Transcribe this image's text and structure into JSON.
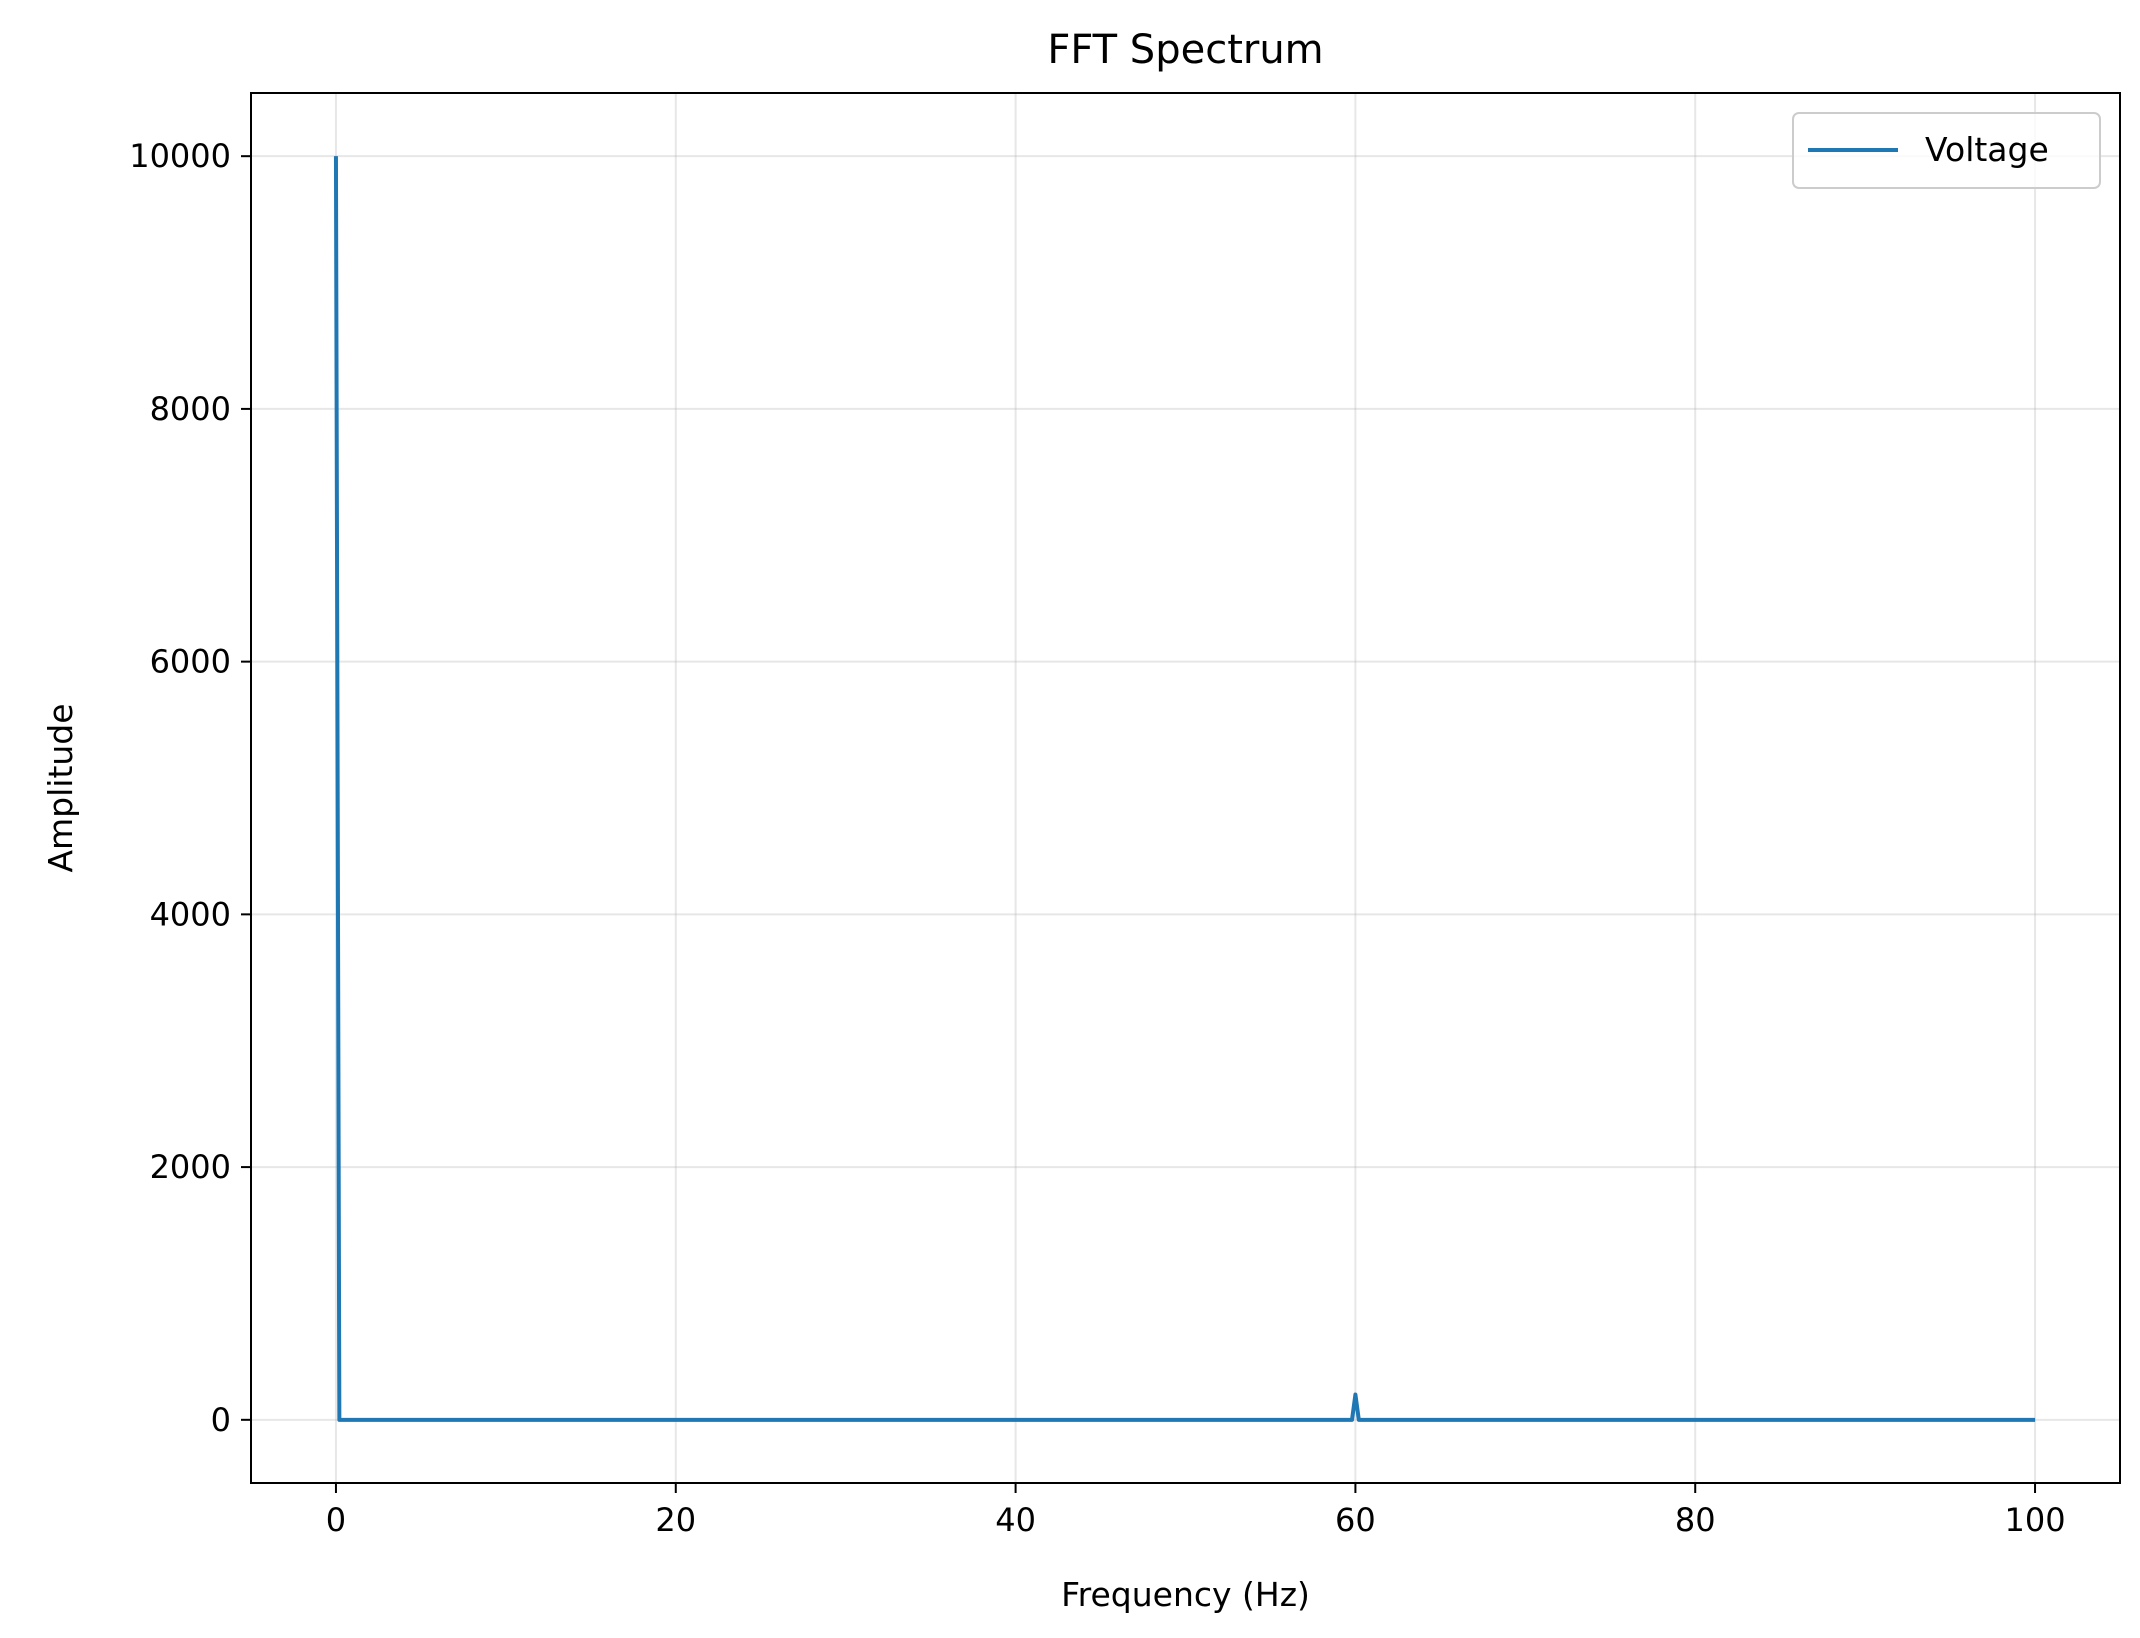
{
  "chart_data": {
    "type": "line",
    "title": "FFT Spectrum",
    "xlabel": "Frequency (Hz)",
    "ylabel": "Amplitude",
    "xlim": [
      -5,
      105
    ],
    "ylim": [
      -500,
      10500
    ],
    "xticks": [
      0,
      20,
      40,
      60,
      80,
      100
    ],
    "yticks": [
      0,
      2000,
      4000,
      6000,
      8000,
      10000
    ],
    "grid": true,
    "legend_position": "upper right",
    "series": [
      {
        "name": "Voltage",
        "color": "#1f77b4",
        "x": [
          0,
          0.2,
          59.6,
          59.8,
          60.0,
          60.2,
          60.4,
          100
        ],
        "y": [
          10000,
          0,
          0,
          0,
          200,
          0,
          0,
          0
        ]
      }
    ]
  }
}
